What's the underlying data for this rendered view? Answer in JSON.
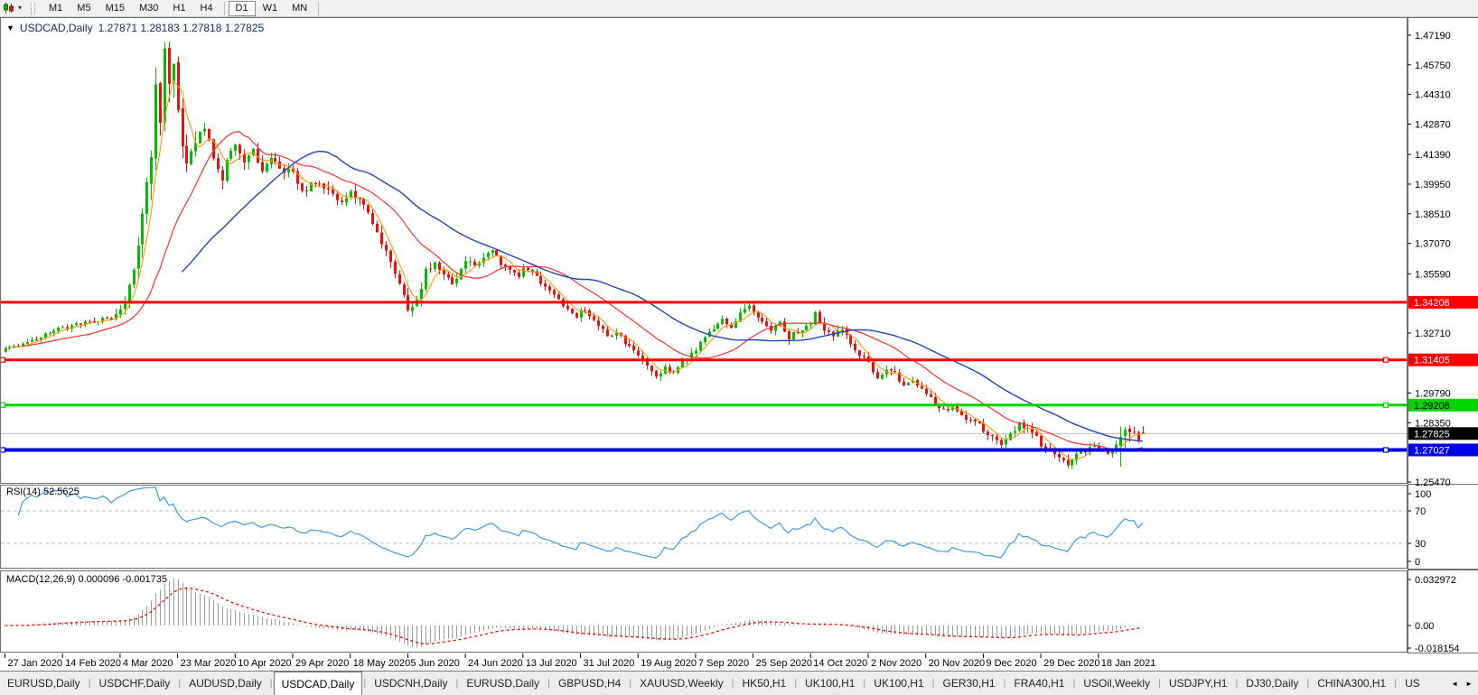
{
  "toolbar": {
    "chart_menu_icon": "candlestick-chart",
    "dropdown_icon": "▾",
    "timeframes": [
      "M1",
      "M5",
      "M15",
      "M30",
      "H1",
      "H4",
      "D1",
      "W1",
      "MN"
    ],
    "active_timeframe": "D1"
  },
  "window": {
    "collapse_icon": "▼",
    "title": "USDCAD,Daily",
    "ohlc": "1.27871 1.28183 1.27818 1.27825"
  },
  "price_axis": {
    "ticks": [
      "1.47190",
      "1.45750",
      "1.44310",
      "1.42870",
      "1.41390",
      "1.39950",
      "1.38510",
      "1.37070",
      "1.35590",
      "1.32710",
      "1.29790",
      "1.28350",
      "1.25470"
    ]
  },
  "levels": [
    {
      "label": "1.34206",
      "price": 1.34206,
      "color": "#FF0000",
      "text_color": "#FFFFFF",
      "thickness": 3,
      "handles": false,
      "name": "hline-1-34206"
    },
    {
      "label": "1.31405",
      "price": 1.31405,
      "color": "#FF0000",
      "text_color": "#FFFFFF",
      "thickness": 3,
      "handles": true,
      "name": "hline-1-31405"
    },
    {
      "label": "1.29208",
      "price": 1.29208,
      "color": "#00D500",
      "text_color": "#000000",
      "thickness": 3,
      "handles": true,
      "name": "hline-1-29208"
    },
    {
      "label": "1.27027",
      "price": 1.27027,
      "color": "#0000E6",
      "text_color": "#FFFFFF",
      "thickness": 4,
      "handles": true,
      "name": "hline-1-27027"
    }
  ],
  "current_price": {
    "label": "1.27825",
    "price": 1.27825,
    "line_color": "#BDBDBD",
    "chip_bg": "#000000",
    "chip_text": "#FFFFFF"
  },
  "rsi_pane": {
    "label": "RSI(14) 52.5625",
    "axis_labels": [
      "100",
      "70",
      "30",
      "0"
    ],
    "upper": 70,
    "lower": 30,
    "line_color": "#3D9AE8",
    "level_color": "#BFBFBF"
  },
  "macd_pane": {
    "label": "MACD(12,26,9) 0.000096 -0.001735",
    "axis_labels": [
      "0.032972",
      "0.00",
      "-0.018154"
    ],
    "hist_color": "#9B9B9B",
    "signal_color": "#FF0000"
  },
  "tabs": {
    "items": [
      "EURUSD,Daily",
      "USDCHF,Daily",
      "AUDUSD,Daily",
      "USDCAD,Daily",
      "USDCNH,Daily",
      "EURUSD,Daily",
      "GBPUSD,H4",
      "XAUUSD,Weekly",
      "HK50,H1",
      "UK100,H1",
      "UK100,H1",
      "GER30,H1",
      "FRA40,H1",
      "USOil,Weekly",
      "USDJPY,H1",
      "DJ30,Daily",
      "CHINA300,H1",
      "US"
    ],
    "active_index": 3,
    "scroll_left": "◄",
    "scroll_right": "►"
  },
  "chart_data": {
    "type": "candlestick",
    "title": "USDCAD,Daily",
    "ohlc_current": {
      "open": 1.27871,
      "high": 1.28183,
      "low": 1.27818,
      "close": 1.27825
    },
    "ylim": [
      1.2547,
      1.4719
    ],
    "n_bars": 258,
    "bars_per_label": 13,
    "x_labels": [
      "27 Jan 2020",
      "14 Feb 2020",
      "4 Mar 2020",
      "23 Mar 2020",
      "10 Apr 2020",
      "29 Apr 2020",
      "18 May 2020",
      "5 Jun 2020",
      "24 Jun 2020",
      "13 Jul 2020",
      "31 Jul 2020",
      "19 Aug 2020",
      "7 Sep 2020",
      "25 Sep 2020",
      "14 Oct 2020",
      "2 Nov 2020",
      "20 Nov 2020",
      "9 Dec 2020",
      "29 Dec 2020",
      "18 Jan 2021"
    ],
    "close_anchors": [
      [
        0,
        1.3195
      ],
      [
        6,
        1.3235
      ],
      [
        12,
        1.329
      ],
      [
        18,
        1.332
      ],
      [
        24,
        1.3345
      ],
      [
        27,
        1.342
      ],
      [
        29,
        1.358
      ],
      [
        31,
        1.384
      ],
      [
        33,
        1.412
      ],
      [
        34,
        1.445
      ],
      [
        35,
        1.428
      ],
      [
        36,
        1.464
      ],
      [
        37,
        1.448
      ],
      [
        38,
        1.454
      ],
      [
        39,
        1.433
      ],
      [
        41,
        1.408
      ],
      [
        43,
        1.422
      ],
      [
        45,
        1.429
      ],
      [
        47,
        1.414
      ],
      [
        49,
        1.402
      ],
      [
        51,
        1.417
      ],
      [
        52,
        1.42
      ],
      [
        54,
        1.409
      ],
      [
        56,
        1.415
      ],
      [
        58,
        1.407
      ],
      [
        60,
        1.413
      ],
      [
        62,
        1.407
      ],
      [
        65,
        1.405
      ],
      [
        67,
        1.395
      ],
      [
        70,
        1.401
      ],
      [
        73,
        1.396
      ],
      [
        76,
        1.39
      ],
      [
        78,
        1.396
      ],
      [
        80,
        1.391
      ],
      [
        82,
        1.385
      ],
      [
        84,
        1.377
      ],
      [
        86,
        1.367
      ],
      [
        88,
        1.355
      ],
      [
        90,
        1.347
      ],
      [
        91,
        1.339
      ],
      [
        93,
        1.343
      ],
      [
        95,
        1.357
      ],
      [
        97,
        1.361
      ],
      [
        99,
        1.355
      ],
      [
        101,
        1.351
      ],
      [
        103,
        1.358
      ],
      [
        104,
        1.363
      ],
      [
        106,
        1.359
      ],
      [
        108,
        1.364
      ],
      [
        110,
        1.367
      ],
      [
        112,
        1.361
      ],
      [
        114,
        1.357
      ],
      [
        116,
        1.354
      ],
      [
        117,
        1.359
      ],
      [
        119,
        1.357
      ],
      [
        121,
        1.352
      ],
      [
        123,
        1.347
      ],
      [
        125,
        1.343
      ],
      [
        127,
        1.339
      ],
      [
        129,
        1.335
      ],
      [
        130,
        1.339
      ],
      [
        132,
        1.335
      ],
      [
        134,
        1.331
      ],
      [
        136,
        1.325
      ],
      [
        138,
        1.328
      ],
      [
        140,
        1.322
      ],
      [
        142,
        1.319
      ],
      [
        143,
        1.316
      ],
      [
        145,
        1.311
      ],
      [
        147,
        1.305
      ],
      [
        149,
        1.31
      ],
      [
        151,
        1.308
      ],
      [
        153,
        1.314
      ],
      [
        155,
        1.317
      ],
      [
        156,
        1.319
      ],
      [
        158,
        1.325
      ],
      [
        160,
        1.33
      ],
      [
        162,
        1.335
      ],
      [
        164,
        1.329
      ],
      [
        166,
        1.338
      ],
      [
        168,
        1.341
      ],
      [
        169,
        1.337
      ],
      [
        171,
        1.332
      ],
      [
        173,
        1.329
      ],
      [
        175,
        1.332
      ],
      [
        177,
        1.325
      ],
      [
        179,
        1.328
      ],
      [
        181,
        1.33
      ],
      [
        182,
        1.332
      ],
      [
        183,
        1.337
      ],
      [
        185,
        1.329
      ],
      [
        187,
        1.325
      ],
      [
        189,
        1.33
      ],
      [
        191,
        1.321
      ],
      [
        193,
        1.316
      ],
      [
        195,
        1.313
      ],
      [
        197,
        1.305
      ],
      [
        199,
        1.31
      ],
      [
        201,
        1.307
      ],
      [
        203,
        1.302
      ],
      [
        205,
        1.305
      ],
      [
        207,
        1.3
      ],
      [
        208,
        1.2985
      ],
      [
        210,
        1.2935
      ],
      [
        212,
        1.2895
      ],
      [
        214,
        1.2915
      ],
      [
        216,
        1.2875
      ],
      [
        218,
        1.2845
      ],
      [
        220,
        1.2825
      ],
      [
        221,
        1.28
      ],
      [
        223,
        1.276
      ],
      [
        225,
        1.272
      ],
      [
        227,
        1.278
      ],
      [
        229,
        1.283
      ],
      [
        231,
        1.28
      ],
      [
        233,
        1.276
      ],
      [
        234,
        1.273
      ],
      [
        236,
        1.27
      ],
      [
        238,
        1.266
      ],
      [
        240,
        1.263
      ],
      [
        242,
        1.268
      ],
      [
        244,
        1.27
      ],
      [
        246,
        1.272
      ],
      [
        247,
        1.271
      ],
      [
        249,
        1.269
      ],
      [
        251,
        1.272
      ],
      [
        253,
        1.276
      ],
      [
        255,
        1.279
      ],
      [
        256,
        1.275
      ],
      [
        257,
        1.27825
      ]
    ],
    "vol_anchors": [
      [
        0,
        0.003
      ],
      [
        24,
        0.0035
      ],
      [
        28,
        0.01
      ],
      [
        33,
        0.016
      ],
      [
        38,
        0.017
      ],
      [
        42,
        0.012
      ],
      [
        48,
        0.009
      ],
      [
        60,
        0.006
      ],
      [
        80,
        0.006
      ],
      [
        91,
        0.008
      ],
      [
        100,
        0.005
      ],
      [
        120,
        0.004
      ],
      [
        150,
        0.0045
      ],
      [
        170,
        0.0045
      ],
      [
        190,
        0.005
      ],
      [
        210,
        0.004
      ],
      [
        225,
        0.005
      ],
      [
        240,
        0.005
      ],
      [
        248,
        0.0035
      ],
      [
        251,
        0.004
      ],
      [
        252,
        0.02
      ],
      [
        254,
        0.018
      ],
      [
        255,
        0.006
      ],
      [
        257,
        0.0037
      ]
    ],
    "moving_averages": [
      {
        "period": 5,
        "color": "#FF9900",
        "name": "ma-fast-line"
      },
      {
        "period": 20,
        "color": "#FF3030",
        "name": "ma-mid-line"
      },
      {
        "period": 40,
        "color": "#2342C0",
        "name": "ma-slow-line"
      }
    ],
    "rsi": {
      "period": 14,
      "value": 52.5625
    },
    "macd": {
      "fast": 12,
      "slow": 26,
      "signal_period": 9,
      "value": 9.6e-05,
      "signal_value": -0.001735,
      "scale_max": 0.032972,
      "scale_min": -0.018154
    },
    "colors": {
      "up": "#00BF00",
      "down": "#EF0D0D"
    }
  }
}
